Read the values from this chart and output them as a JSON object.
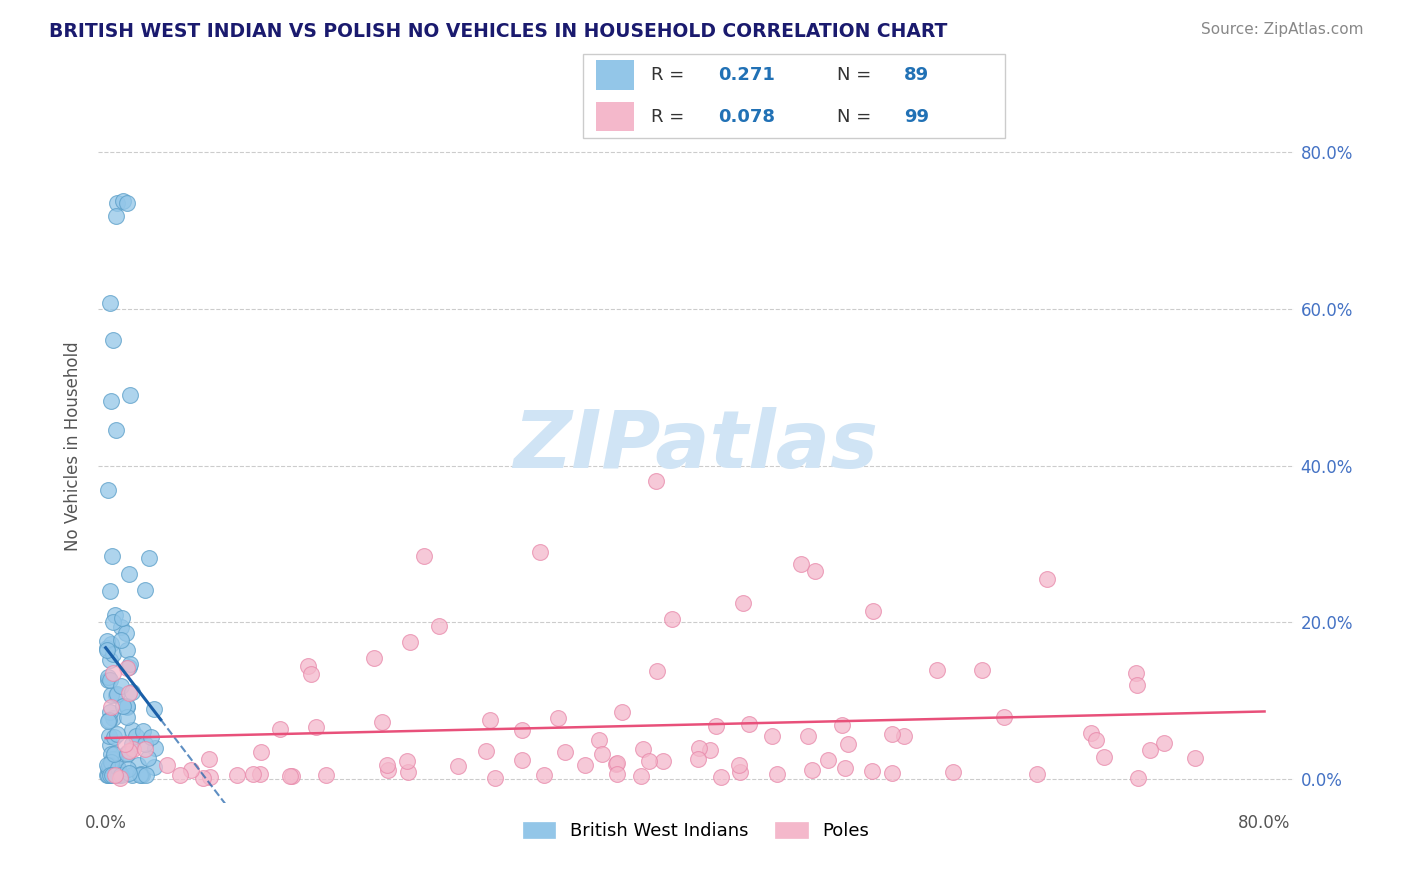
{
  "title": "BRITISH WEST INDIAN VS POLISH NO VEHICLES IN HOUSEHOLD CORRELATION CHART",
  "source": "Source: ZipAtlas.com",
  "ylabel": "No Vehicles in Household",
  "xlim": [
    -0.005,
    0.82
  ],
  "ylim": [
    -0.03,
    0.88
  ],
  "blue_R": 0.271,
  "blue_N": 89,
  "pink_R": 0.078,
  "pink_N": 99,
  "blue_color": "#93c6e8",
  "pink_color": "#f4b8cb",
  "blue_marker_edge": "#5a9ec8",
  "pink_marker_edge": "#e888aa",
  "blue_line_color": "#1a5fa8",
  "pink_line_color": "#e8507a",
  "watermark_color": "#d0e4f5",
  "legend_label_blue": "British West Indians",
  "legend_label_pink": "Poles",
  "title_color": "#1a1a6e",
  "source_color": "#888888",
  "ytick_color": "#4169c8",
  "ytick_label_color": "#4472c4",
  "grid_color": "#cccccc"
}
